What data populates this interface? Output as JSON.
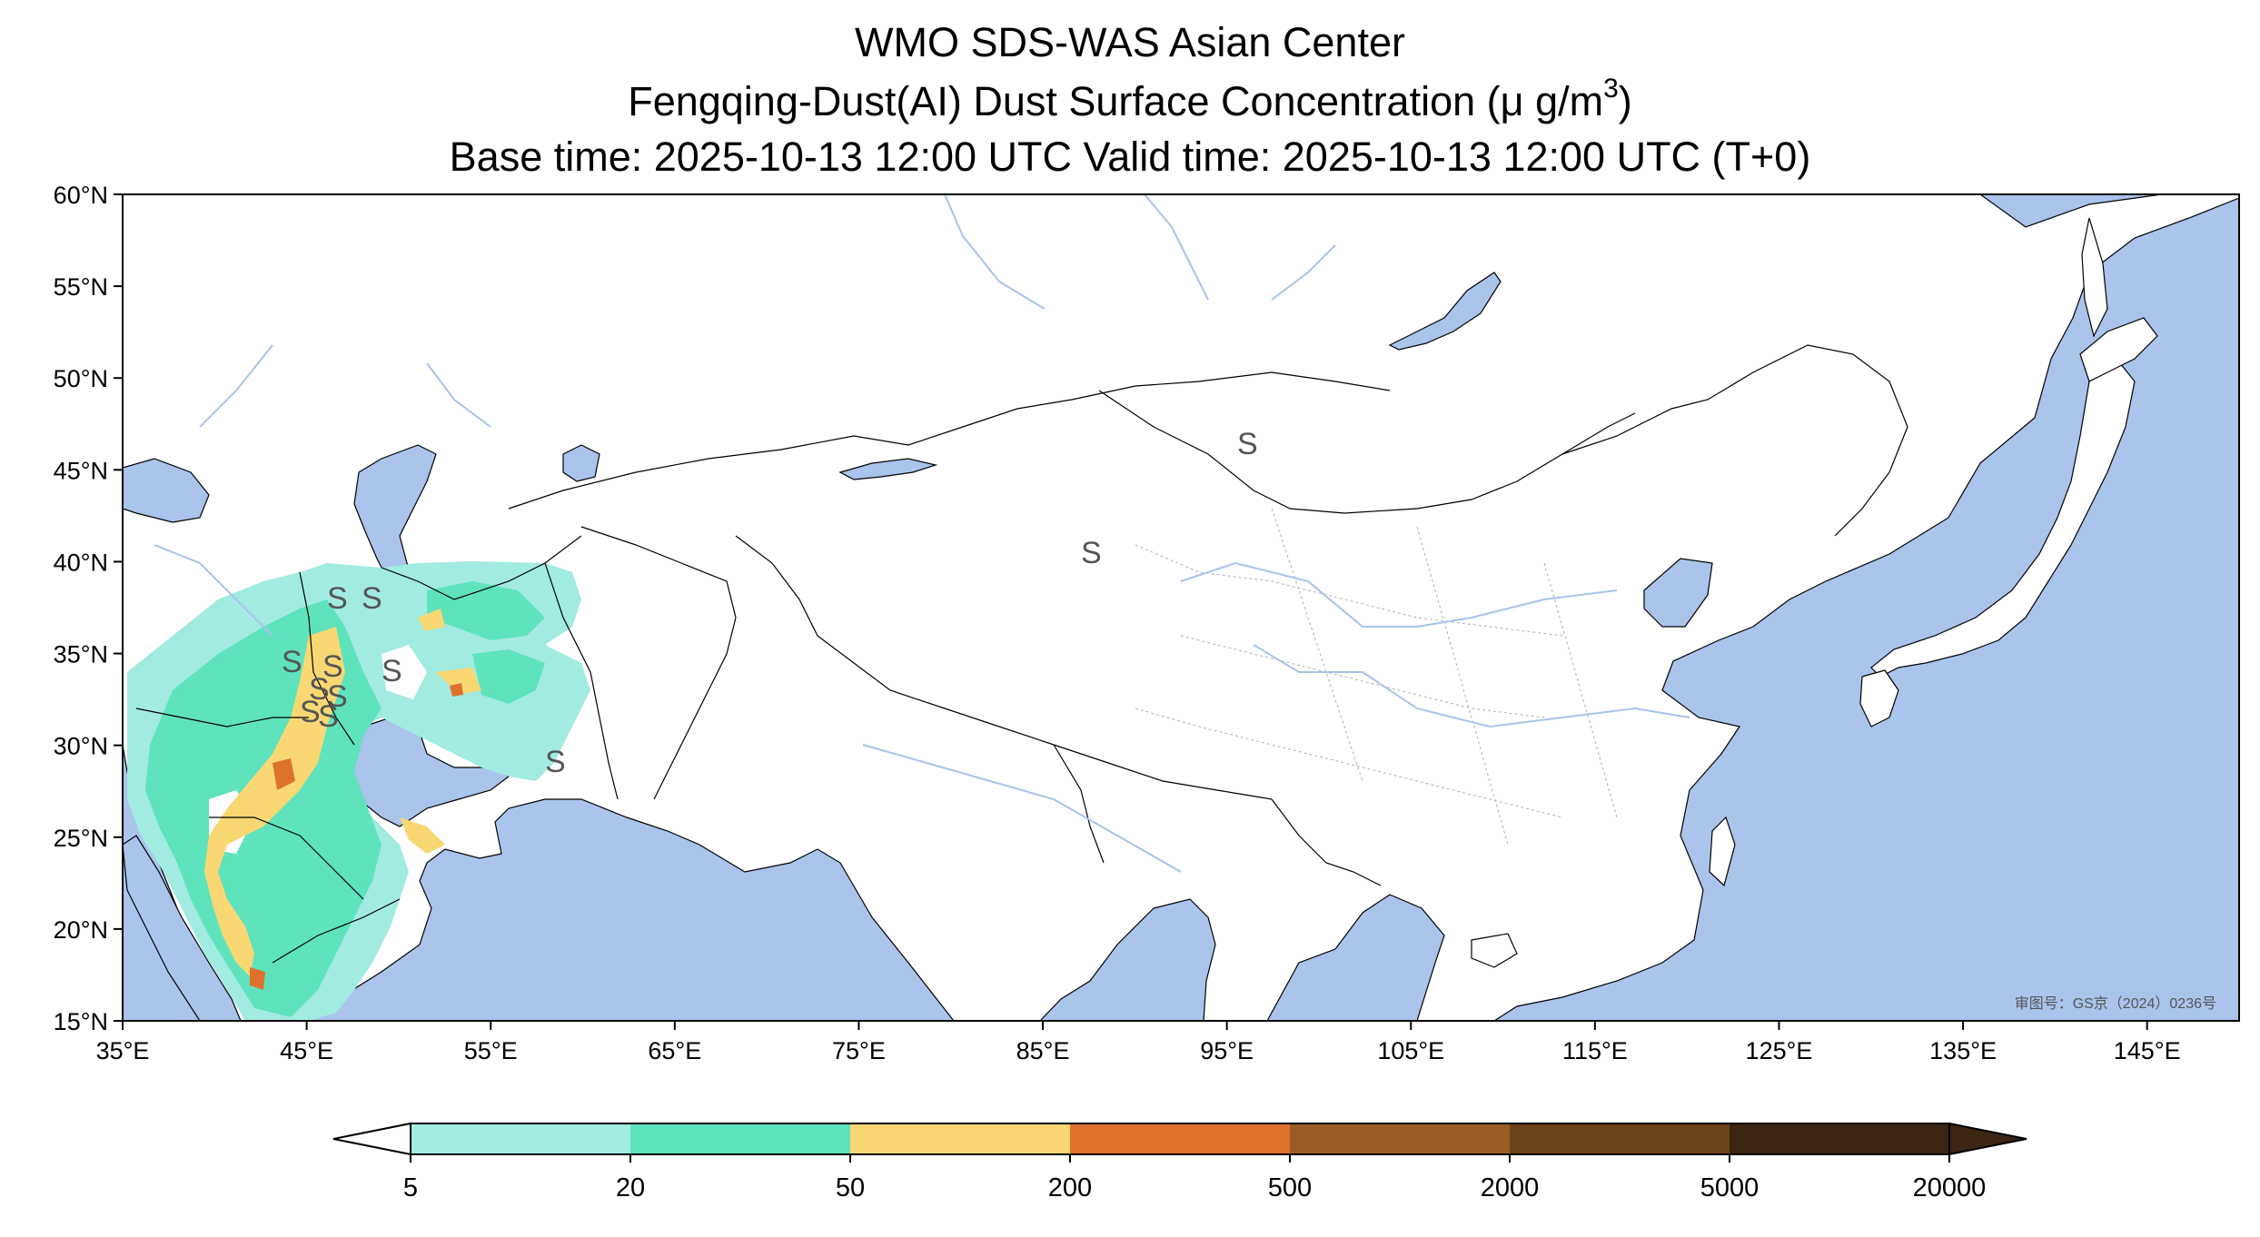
{
  "header": {
    "line1": "WMO SDS-WAS Asian Center",
    "line2_prefix": "Fengqing-Dust(AI) Dust Surface Concentration (",
    "line2_unit": "μ g/m",
    "line2_exp": "3",
    "line2_suffix": ")",
    "line3": "Base time: 2025-10-13 12:00 UTC Valid time: 2025-10-13 12:00 UTC (T+0)"
  },
  "map": {
    "lon_range": [
      35,
      150
    ],
    "lat_range": [
      15,
      60
    ],
    "lon_ticks": [
      "35°E",
      "45°E",
      "55°E",
      "65°E",
      "75°E",
      "85°E",
      "95°E",
      "105°E",
      "115°E",
      "125°E",
      "135°E",
      "145°E"
    ],
    "lat_ticks": [
      "60°N",
      "55°N",
      "50°N",
      "45°N",
      "40°N",
      "35°N",
      "30°N",
      "25°N",
      "20°N",
      "15°N"
    ],
    "colors": {
      "ocean": "#aac4ec",
      "land": "#ffffff",
      "border": "#000000",
      "river": "#a9c3e8",
      "province": "#b0b0b0"
    },
    "watermark": "审图号：GS京（2024）0236号",
    "symbol": "S"
  },
  "colorbar": {
    "levels": [
      "5",
      "20",
      "50",
      "200",
      "500",
      "2000",
      "5000",
      "20000"
    ],
    "colors": [
      "#a2ebe1",
      "#5ee3bd",
      "#f9d874",
      "#dd722d",
      "#9b5b23",
      "#6c431b",
      "#3b2513"
    ]
  }
}
